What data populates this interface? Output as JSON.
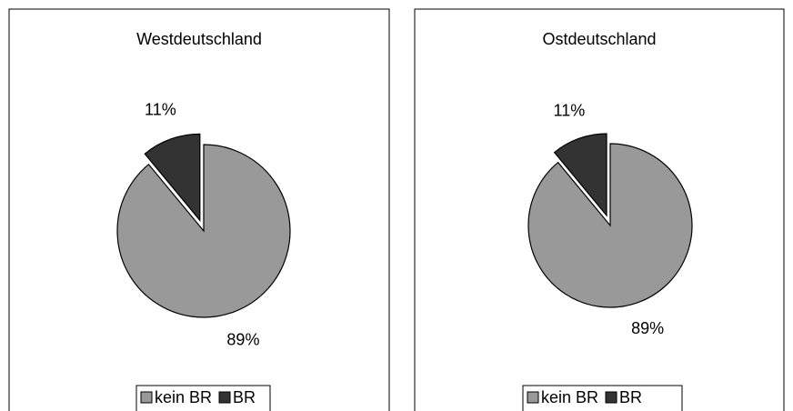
{
  "chart_data": [
    {
      "type": "pie",
      "title": "Westdeutschland",
      "categories": [
        "kein BR",
        "BR"
      ],
      "values": [
        89,
        11
      ],
      "value_labels": [
        "89%",
        "11%"
      ],
      "colors": [
        "#999999",
        "#333333"
      ],
      "explode": [
        false,
        true
      ],
      "legend": "bottom"
    },
    {
      "type": "pie",
      "title": "Ostdeutschland",
      "categories": [
        "kein BR",
        "BR"
      ],
      "values": [
        89,
        11
      ],
      "value_labels": [
        "89%",
        "11%"
      ],
      "colors": [
        "#999999",
        "#333333"
      ],
      "explode": [
        false,
        true
      ],
      "legend": "bottom"
    }
  ]
}
